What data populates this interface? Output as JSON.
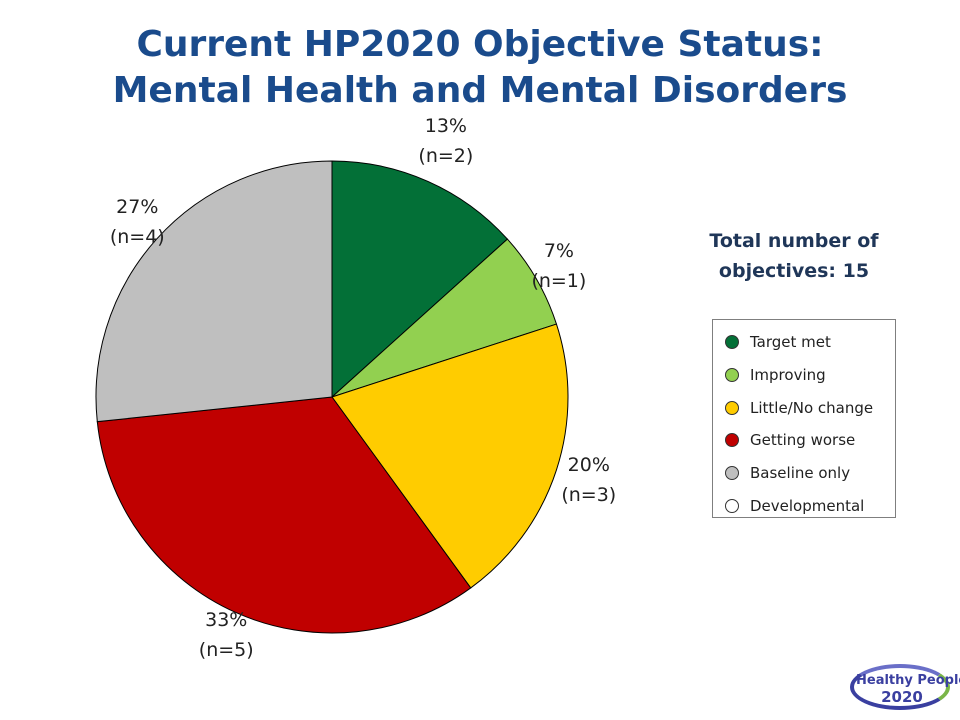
{
  "title": {
    "line1": "Current HP2020 Objective Status:",
    "line2": "Mental Health and Mental Disorders"
  },
  "total": {
    "line1": "Total number of",
    "line2": "objectives: 15"
  },
  "chart_data": {
    "type": "pie",
    "title": "Current HP2020 Objective Status: Mental Health and Mental Disorders",
    "total_objectives": 15,
    "slices": [
      {
        "name": "Target met",
        "count": 2,
        "percent": 13,
        "pct_label": "13%",
        "n_label": "(n=2)",
        "color": "#037037"
      },
      {
        "name": "Improving",
        "count": 1,
        "percent": 7,
        "pct_label": "7%",
        "n_label": "(n=1)",
        "color": "#92d050"
      },
      {
        "name": "Little/No change",
        "count": 3,
        "percent": 20,
        "pct_label": "20%",
        "n_label": "(n=3)",
        "color": "#ffcc00"
      },
      {
        "name": "Getting worse",
        "count": 5,
        "percent": 33,
        "pct_label": "33%",
        "n_label": "(n=5)",
        "color": "#c00000"
      },
      {
        "name": "Baseline only",
        "count": 4,
        "percent": 27,
        "pct_label": "27%",
        "n_label": "(n=4)",
        "color": "#bfbfbf"
      },
      {
        "name": "Developmental",
        "count": 0,
        "percent": 0,
        "pct_label": "",
        "n_label": "",
        "color": "#ffffff"
      }
    ],
    "legend_placement": "right"
  },
  "logo": {
    "line1": "Healthy People",
    "line2": "2020"
  }
}
